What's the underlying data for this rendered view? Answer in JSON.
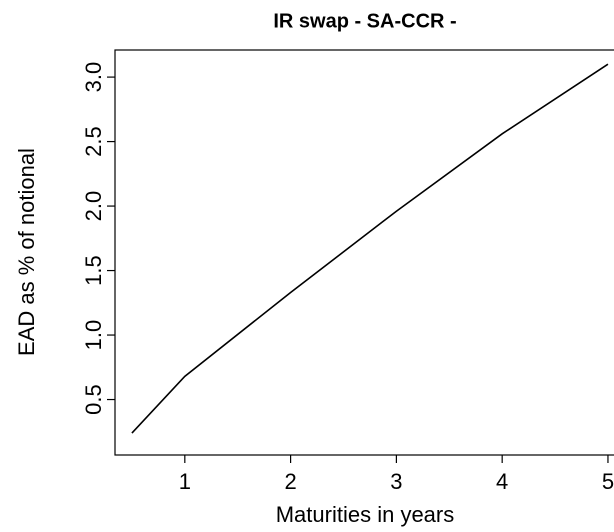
{
  "chart_data": {
    "type": "line",
    "title": "IR swap - SA-CCR -",
    "x_label": "Maturities in years",
    "y_label": "EAD as % of notional",
    "x": [
      0.5,
      1,
      2,
      3,
      4,
      5
    ],
    "series": [
      {
        "color": "#000000",
        "values": [
          0.24,
          0.68,
          1.33,
          1.96,
          2.56,
          3.1
        ]
      }
    ],
    "xlim": [
      0.34,
      5.18
    ],
    "ylim": [
      0.07,
      3.21
    ],
    "xticks": [
      1,
      2,
      3,
      4,
      5
    ],
    "yticks": [
      {
        "value": 0.5,
        "label": "0.5"
      },
      {
        "value": 1,
        "label": "1.0"
      },
      {
        "value": 1.5,
        "label": "1.5"
      },
      {
        "value": 2,
        "label": "2.0"
      },
      {
        "value": 2.5,
        "label": "2.5"
      },
      {
        "value": 3,
        "label": "3.0"
      }
    ],
    "grid": false
  }
}
